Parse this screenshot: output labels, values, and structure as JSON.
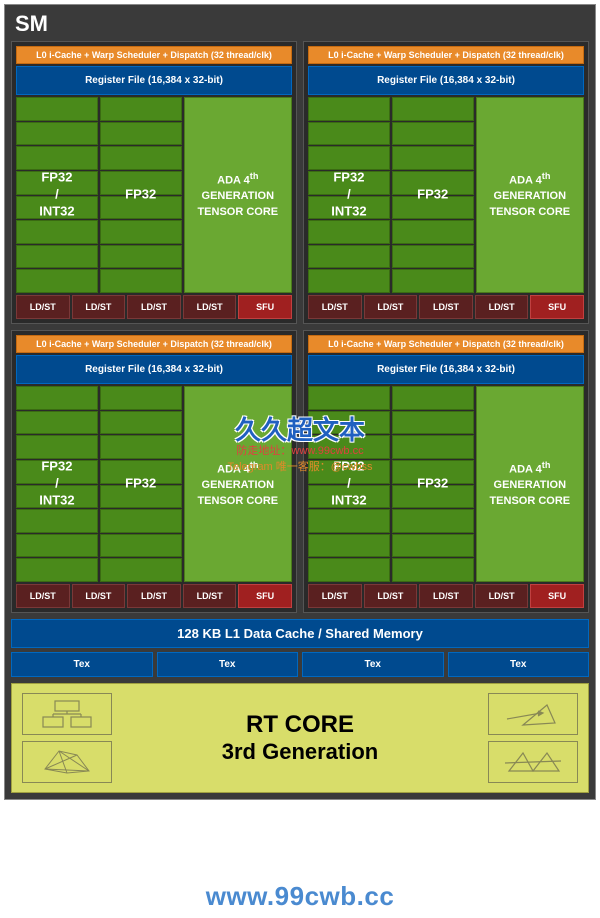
{
  "title": "SM",
  "partition": {
    "warp": "L0 i-Cache + Warp Scheduler + Dispatch (32 thread/clk)",
    "register": "Register File (16,384 x 32-bit)",
    "col1_label": "FP32\n/\nINT32",
    "col2_label": "FP32",
    "tensor_line1": "ADA 4",
    "tensor_sup": "th",
    "tensor_line2": "GENERATION",
    "tensor_line3": "TENSOR CORE",
    "ldst": "LD/ST",
    "sfu": "SFU",
    "core_rows": 8
  },
  "l1": "128 KB L1 Data Cache / Shared Memory",
  "tex": "Tex",
  "tex_count": 4,
  "rt": {
    "line1": "RT CORE",
    "line2": "3rd Generation"
  },
  "watermark": {
    "cn": "久久超文本",
    "red": "防走地址：www.99cwb.cc",
    "orange": "Telegram 唯一客服：@cwbss",
    "url": "www.99cwb.cc"
  },
  "colors": {
    "container_bg": "#3a3a3a",
    "warp_bg": "#e88a2a",
    "reg_bg": "#004a8f",
    "core_bg": "#4a8a1a",
    "tensor_bg": "#6aa832",
    "ldst_bg": "#5a2020",
    "sfu_bg": "#a02020",
    "rt_bg": "#d8dd6a"
  }
}
